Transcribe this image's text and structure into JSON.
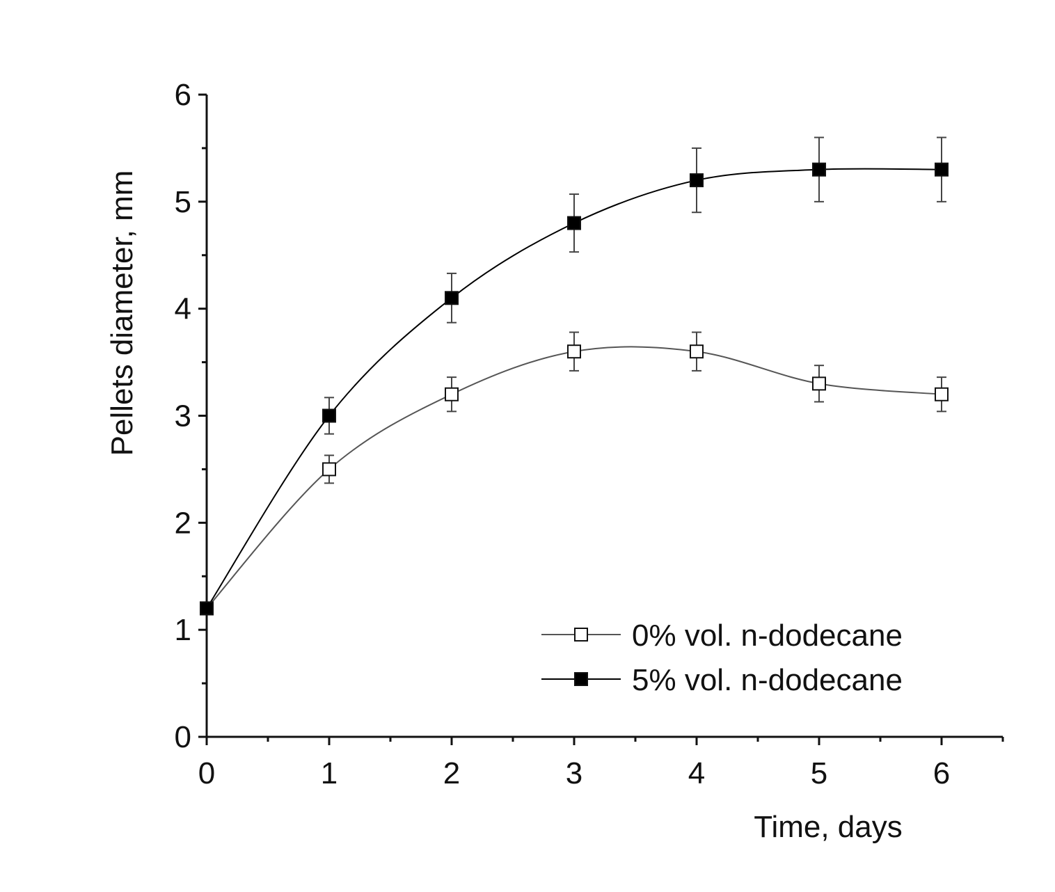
{
  "chart_data": {
    "type": "line",
    "title": "",
    "xlabel": "Time, days",
    "ylabel": "Pellets diameter, mm",
    "xlim": [
      0,
      6.5
    ],
    "ylim": [
      0,
      6
    ],
    "xticks": [
      0,
      1,
      2,
      3,
      4,
      5,
      6
    ],
    "yticks": [
      0,
      1,
      2,
      3,
      4,
      5,
      6
    ],
    "grid": false,
    "legend_position": "bottom-right",
    "series": [
      {
        "name": "0% vol. n-dodecane",
        "marker": "open-square",
        "color": "#555555",
        "x": [
          0,
          1,
          2,
          3,
          4,
          5,
          6
        ],
        "y": [
          1.2,
          2.5,
          3.2,
          3.6,
          3.6,
          3.3,
          3.2
        ],
        "error": [
          0,
          0.13,
          0.16,
          0.18,
          0.18,
          0.17,
          0.16
        ]
      },
      {
        "name": "5% vol. n-dodecane",
        "marker": "filled-square",
        "color": "#000000",
        "x": [
          0,
          1,
          2,
          3,
          4,
          5,
          6
        ],
        "y": [
          1.2,
          3.0,
          4.1,
          4.8,
          5.2,
          5.3,
          5.3
        ],
        "error": [
          0,
          0.17,
          0.23,
          0.27,
          0.3,
          0.3,
          0.3
        ]
      }
    ]
  }
}
